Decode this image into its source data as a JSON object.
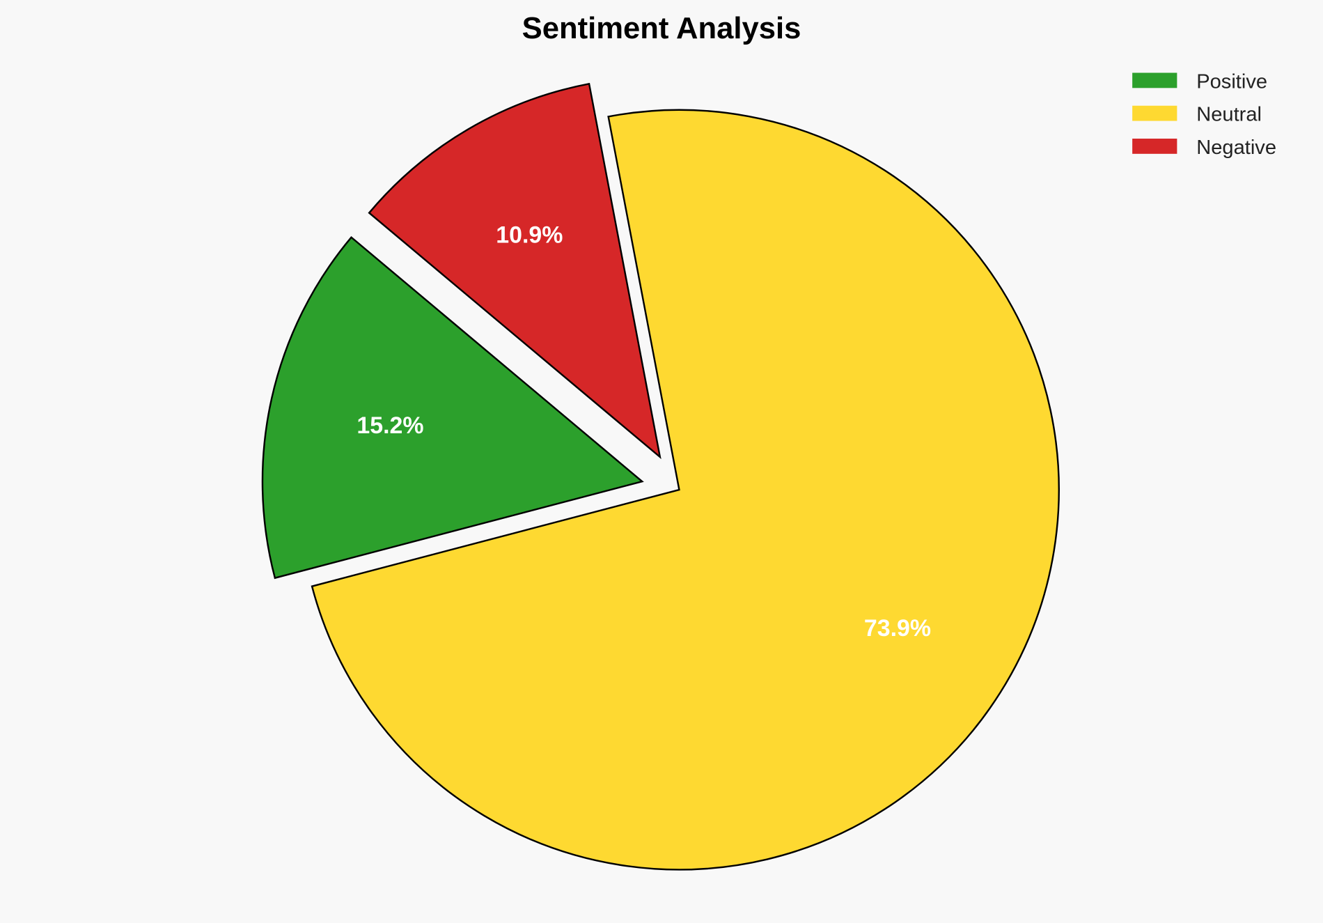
{
  "chart_data": {
    "type": "pie",
    "title": "Sentiment Analysis",
    "categories": [
      "Positive",
      "Neutral",
      "Negative"
    ],
    "values": [
      15.2,
      73.9,
      10.9
    ],
    "labels": [
      "15.2%",
      "73.9%",
      "10.9%"
    ],
    "colors": [
      "#2ca02c",
      "#fed931",
      "#d62728"
    ],
    "exploded": [
      true,
      false,
      true
    ],
    "legend_placement": "top-right"
  }
}
